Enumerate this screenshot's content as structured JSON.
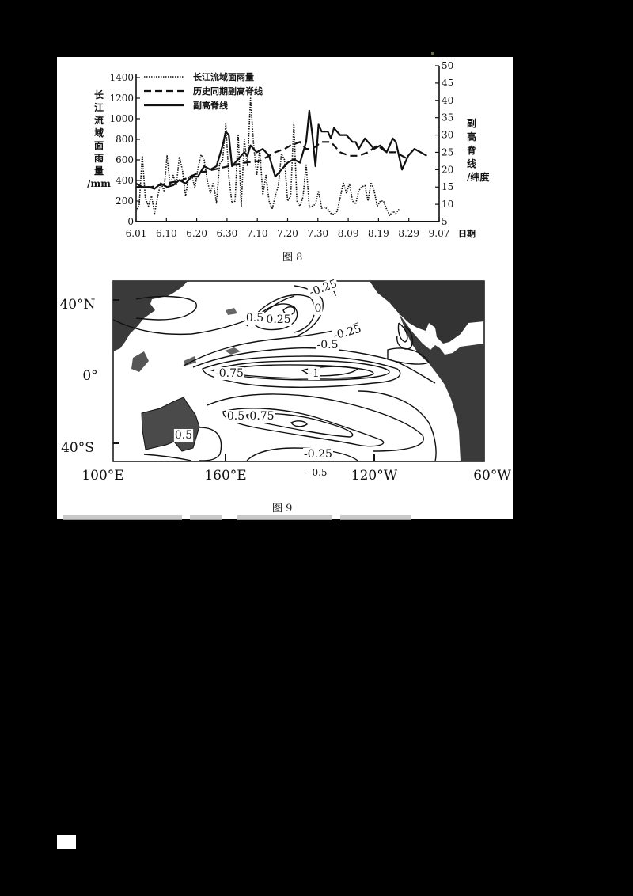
{
  "figure8": {
    "caption": "图 8",
    "legend": [
      {
        "label": "长江流域面雨量",
        "style": "dotted"
      },
      {
        "label": "历史同期副高脊线",
        "style": "dashed"
      },
      {
        "label": "副高脊线",
        "style": "solid"
      }
    ],
    "left_axis_label": [
      "长",
      "江",
      "流",
      "域",
      "面",
      "雨",
      "量",
      "/mm"
    ],
    "right_axis_label": [
      "副",
      "高",
      "脊",
      "线",
      "/纬度"
    ],
    "x_axis_label": "日期"
  },
  "figure9": {
    "caption": "图 9",
    "lat_labels": [
      "40°N",
      "0°",
      "40°S"
    ],
    "lon_labels": [
      "100°E",
      "160°E",
      "120°W",
      "60°W"
    ],
    "contour_labels": [
      "-0.25",
      "0",
      "0.5",
      "0.25",
      "-0.25",
      "-0.5",
      "-0.75",
      "-1",
      "0.5",
      "0.75",
      "0.5",
      "-0.25",
      "-0.5"
    ]
  },
  "chart_data": [
    {
      "type": "line",
      "title": "图 8",
      "xlabel": "日期",
      "ylabel": "长江流域面雨量/mm",
      "y2label": "副高脊线/纬度",
      "x": [
        "6.01",
        "6.10",
        "6.20",
        "6.30",
        "7.10",
        "7.20",
        "7.30",
        "8.09",
        "8.19",
        "8.29",
        "9.07"
      ],
      "ylim": [
        0,
        1400
      ],
      "yticks": [
        0,
        200,
        400,
        600,
        800,
        1000,
        1200,
        1400
      ],
      "y2lim": [
        5,
        50
      ],
      "y2ticks": [
        5,
        10,
        15,
        20,
        25,
        30,
        35,
        40,
        45,
        50
      ],
      "grid": false,
      "legend_position": "top-left",
      "series": [
        {
          "name": "长江流域面雨量",
          "axis": "left",
          "style": "dotted",
          "points": [
            [
              0,
              100
            ],
            [
              1,
              160
            ],
            [
              2,
              640
            ],
            [
              3,
              230
            ],
            [
              4,
              150
            ],
            [
              5,
              250
            ],
            [
              6,
              80
            ],
            [
              7,
              250
            ],
            [
              8,
              380
            ],
            [
              9,
              300
            ],
            [
              10,
              640
            ],
            [
              11,
              350
            ],
            [
              12,
              450
            ],
            [
              13,
              350
            ],
            [
              14,
              630
            ],
            [
              15,
              500
            ],
            [
              16,
              250
            ],
            [
              17,
              430
            ],
            [
              18,
              450
            ],
            [
              19,
              330
            ],
            [
              20,
              520
            ],
            [
              21,
              650
            ],
            [
              22,
              600
            ],
            [
              23,
              400
            ],
            [
              24,
              280
            ],
            [
              25,
              380
            ],
            [
              26,
              180
            ],
            [
              27,
              560
            ],
            [
              28,
              600
            ],
            [
              29,
              950
            ],
            [
              30,
              440
            ],
            [
              31,
              180
            ],
            [
              32,
              200
            ],
            [
              33,
              850
            ],
            [
              34,
              150
            ],
            [
              35,
              800
            ],
            [
              36,
              540
            ],
            [
              37,
              1200
            ],
            [
              38,
              750
            ],
            [
              39,
              450
            ],
            [
              40,
              700
            ],
            [
              41,
              260
            ],
            [
              42,
              450
            ],
            [
              43,
              200
            ],
            [
              44,
              120
            ],
            [
              45,
              250
            ],
            [
              46,
              350
            ],
            [
              47,
              660
            ],
            [
              48,
              600
            ],
            [
              49,
              200
            ],
            [
              50,
              250
            ],
            [
              51,
              960
            ],
            [
              52,
              200
            ],
            [
              53,
              150
            ],
            [
              54,
              240
            ],
            [
              55,
              560
            ],
            [
              56,
              140
            ],
            [
              57,
              150
            ],
            [
              58,
              170
            ],
            [
              59,
              300
            ],
            [
              60,
              130
            ],
            [
              61,
              140
            ],
            [
              62,
              120
            ],
            [
              63,
              80
            ],
            [
              64,
              70
            ],
            [
              65,
              100
            ],
            [
              66,
              230
            ],
            [
              67,
              380
            ],
            [
              68,
              280
            ],
            [
              69,
              370
            ],
            [
              70,
              200
            ],
            [
              71,
              170
            ],
            [
              72,
              300
            ],
            [
              73,
              340
            ],
            [
              74,
              350
            ],
            [
              75,
              200
            ],
            [
              76,
              380
            ],
            [
              77,
              300
            ],
            [
              78,
              150
            ],
            [
              79,
              200
            ],
            [
              80,
              200
            ],
            [
              81,
              120
            ],
            [
              82,
              60
            ],
            [
              83,
              100
            ],
            [
              84,
              80
            ],
            [
              85,
              120
            ]
          ]
        },
        {
          "name": "历史同期副高脊线",
          "axis": "right",
          "style": "dashed",
          "points": [
            [
              0,
              15
            ],
            [
              5,
              15
            ],
            [
              10,
              16
            ],
            [
              15,
              17
            ],
            [
              20,
              19
            ],
            [
              25,
              20
            ],
            [
              30,
              21
            ],
            [
              35,
              22
            ],
            [
              40,
              22.5
            ],
            [
              45,
              25
            ],
            [
              48,
              26
            ],
            [
              50,
              27
            ],
            [
              53,
              28
            ],
            [
              55,
              26
            ],
            [
              57,
              26
            ],
            [
              60,
              28
            ],
            [
              63,
              28
            ],
            [
              66,
              25
            ],
            [
              69,
              24
            ],
            [
              72,
              24
            ],
            [
              75,
              25
            ],
            [
              78,
              27
            ],
            [
              81,
              25
            ],
            [
              84,
              25
            ],
            [
              86,
              24
            ],
            [
              88,
              23
            ]
          ]
        },
        {
          "name": "副高脊线",
          "axis": "right",
          "style": "solid",
          "points": [
            [
              0,
              16
            ],
            [
              2,
              15
            ],
            [
              4,
              15
            ],
            [
              6,
              14.5
            ],
            [
              8,
              16
            ],
            [
              10,
              15
            ],
            [
              12,
              15.5
            ],
            [
              14,
              17
            ],
            [
              16,
              16
            ],
            [
              18,
              18
            ],
            [
              20,
              18
            ],
            [
              22,
              21
            ],
            [
              24,
              20
            ],
            [
              26,
              21
            ],
            [
              28,
              27
            ],
            [
              29,
              31
            ],
            [
              30,
              30
            ],
            [
              31,
              21
            ],
            [
              33,
              23
            ],
            [
              35,
              25
            ],
            [
              36,
              24
            ],
            [
              37,
              27
            ],
            [
              39,
              25
            ],
            [
              41,
              26
            ],
            [
              43,
              24
            ],
            [
              45,
              18
            ],
            [
              47,
              20
            ],
            [
              49,
              22
            ],
            [
              51,
              23
            ],
            [
              53,
              22
            ],
            [
              55,
              28
            ],
            [
              56,
              37
            ],
            [
              57,
              30
            ],
            [
              58,
              21
            ],
            [
              59,
              33
            ],
            [
              60,
              31
            ],
            [
              62,
              31
            ],
            [
              63,
              29
            ],
            [
              64,
              32
            ],
            [
              66,
              30
            ],
            [
              68,
              30
            ],
            [
              70,
              28
            ],
            [
              71,
              28
            ],
            [
              72,
              26
            ],
            [
              74,
              29
            ],
            [
              75,
              28
            ],
            [
              77,
              26
            ],
            [
              79,
              27
            ],
            [
              81,
              25
            ],
            [
              83,
              29
            ],
            [
              84,
              28
            ],
            [
              86,
              20
            ],
            [
              88,
              24
            ],
            [
              90,
              26
            ],
            [
              92,
              25
            ],
            [
              94,
              24
            ]
          ]
        }
      ]
    },
    {
      "type": "contour-map",
      "title": "图 9",
      "lat_range": [
        "40°S",
        "40°N"
      ],
      "lon_range": [
        "100°E",
        "60°W"
      ],
      "lat_ticks": [
        "40°N",
        "0°",
        "40°S"
      ],
      "lon_ticks": [
        "100°E",
        "160°E",
        "120°W",
        "60°W"
      ],
      "contour_levels": [
        -1,
        -0.75,
        -0.5,
        -0.25,
        0,
        0.25,
        0.5,
        0.75
      ],
      "contour_labels_shown": [
        "-0.25",
        "0",
        "0.5",
        "0.25",
        "-0.25",
        "-0.5",
        "-0.75",
        "-1",
        "0.5",
        "0.75",
        "0.5",
        "-0.25",
        "-0.5"
      ]
    }
  ]
}
